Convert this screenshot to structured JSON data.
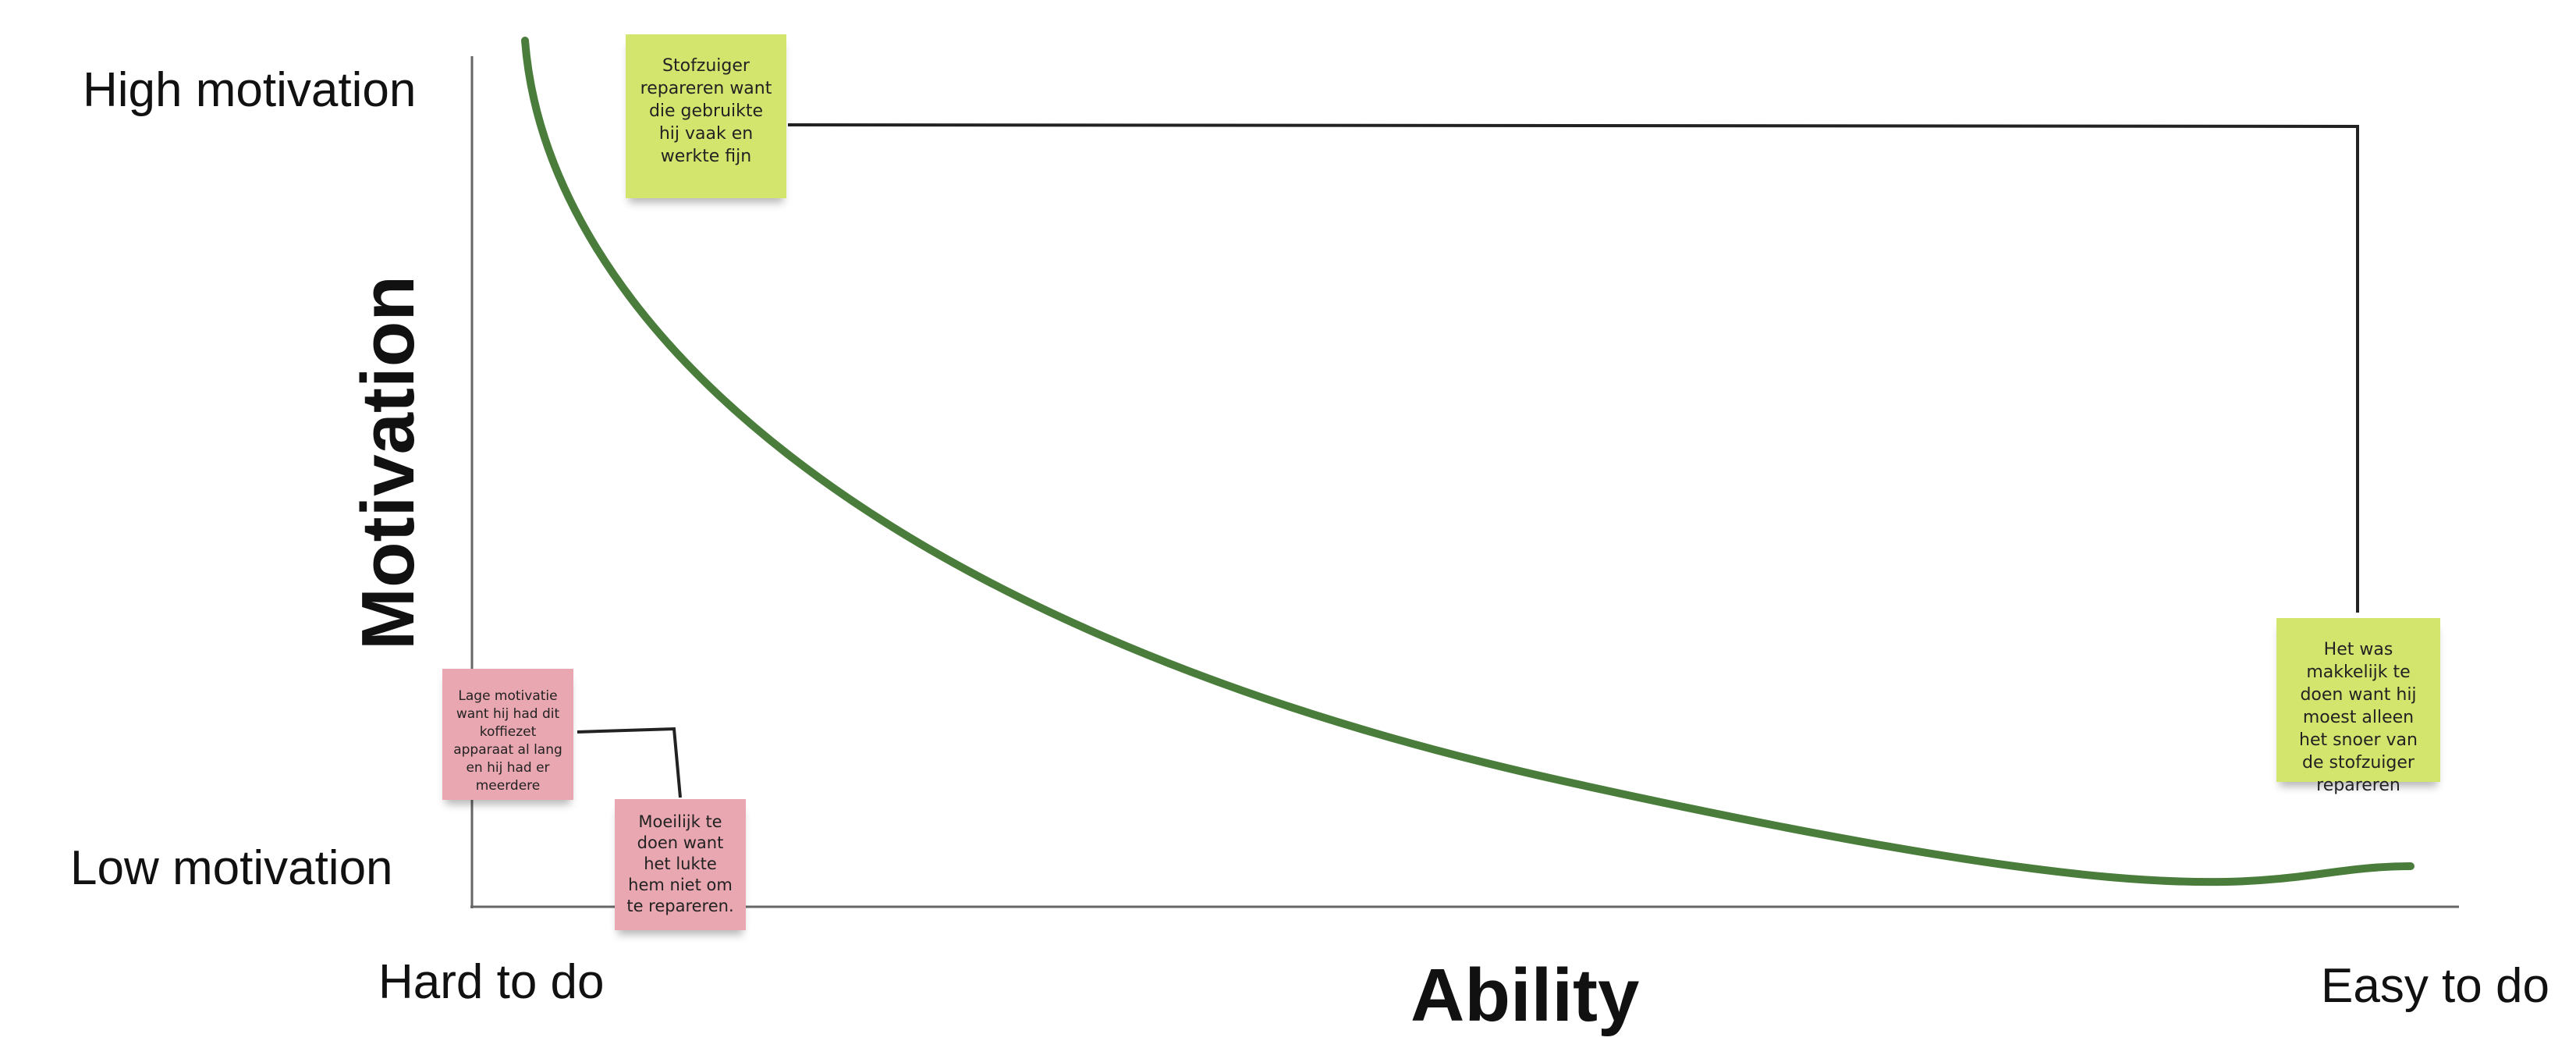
{
  "axes": {
    "y_title": "Motivation",
    "x_title": "Ability",
    "y_high": "High motivation",
    "y_low": "Low motivation",
    "x_low": "Hard to do",
    "x_high": "Easy to do"
  },
  "notes": {
    "green_top": "Stofzuiger repareren want die gebruikte hij vaak en werkte fijn",
    "green_right": "Het was makkelijk te doen want hij moest alleen het snoer van de stofzuiger repareren",
    "pink_left": "Lage motivatie want hij had dit koffiezet apparaat al lang en hij had er meerdere",
    "pink_bottom": "Moeilijk te doen want het lukte hem niet om te repareren."
  },
  "colors": {
    "curve": "#4a7d3b",
    "note_green": "#d3e56d",
    "note_pink": "#e8a7b1",
    "axis": "#666666",
    "connector": "#222222"
  }
}
